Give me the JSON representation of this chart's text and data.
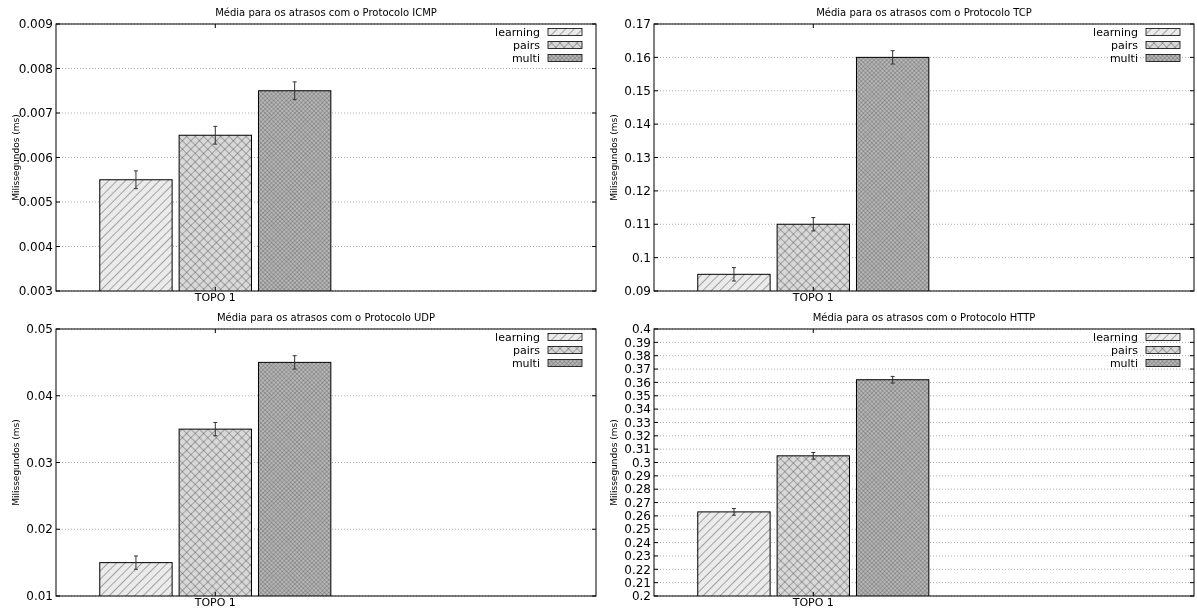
{
  "chart_data": [
    {
      "type": "bar",
      "title": "Média para os atrasos com o Protocolo ICMP",
      "ylabel": "Milissegundos (ms)",
      "categories": [
        "TOPO 1"
      ],
      "series": [
        {
          "name": "learning",
          "color": "#ebebeb",
          "values": [
            0.0055
          ],
          "errors": [
            0.0002
          ]
        },
        {
          "name": "pairs",
          "color": "#d8d8d8",
          "values": [
            0.0065
          ],
          "errors": [
            0.0002
          ]
        },
        {
          "name": "multi",
          "color": "#b8b8b8",
          "values": [
            0.0075
          ],
          "errors": [
            0.0002
          ]
        }
      ],
      "ylim": [
        0.003,
        0.009
      ],
      "yticks": [
        0.003,
        0.004,
        0.005,
        0.006,
        0.007,
        0.008,
        0.009
      ],
      "grid": "y",
      "legend": "top right"
    },
    {
      "type": "bar",
      "title": "Média para os atrasos com o Protocolo TCP",
      "ylabel": "Milissegundos (ms)",
      "categories": [
        "TOPO 1"
      ],
      "series": [
        {
          "name": "learning",
          "color": "#ebebeb",
          "values": [
            0.095
          ],
          "errors": [
            0.002
          ]
        },
        {
          "name": "pairs",
          "color": "#d8d8d8",
          "values": [
            0.11
          ],
          "errors": [
            0.002
          ]
        },
        {
          "name": "multi",
          "color": "#b8b8b8",
          "values": [
            0.16
          ],
          "errors": [
            0.002
          ]
        }
      ],
      "ylim": [
        0.09,
        0.17
      ],
      "yticks": [
        0.09,
        0.1,
        0.11,
        0.12,
        0.13,
        0.14,
        0.15,
        0.16,
        0.17
      ],
      "grid": "y",
      "legend": "top right"
    },
    {
      "type": "bar",
      "title": "Média para os atrasos com o Protocolo UDP",
      "ylabel": "Milissegundos (ms)",
      "categories": [
        "TOPO 1"
      ],
      "series": [
        {
          "name": "learning",
          "color": "#ebebeb",
          "values": [
            0.015
          ],
          "errors": [
            0.001
          ]
        },
        {
          "name": "pairs",
          "color": "#d8d8d8",
          "values": [
            0.035
          ],
          "errors": [
            0.001
          ]
        },
        {
          "name": "multi",
          "color": "#b8b8b8",
          "values": [
            0.045
          ],
          "errors": [
            0.001
          ]
        }
      ],
      "ylim": [
        0.01,
        0.05
      ],
      "yticks": [
        0.01,
        0.02,
        0.03,
        0.04,
        0.05
      ],
      "grid": "y",
      "legend": "top right"
    },
    {
      "type": "bar",
      "title": "Média para os atrasos com o Protocolo HTTP",
      "ylabel": "Milissegundos (ms)",
      "categories": [
        "TOPO 1"
      ],
      "series": [
        {
          "name": "learning",
          "color": "#ebebeb",
          "values": [
            0.263
          ],
          "errors": [
            0.0025
          ]
        },
        {
          "name": "pairs",
          "color": "#d8d8d8",
          "values": [
            0.305
          ],
          "errors": [
            0.0025
          ]
        },
        {
          "name": "multi",
          "color": "#b8b8b8",
          "values": [
            0.362
          ],
          "errors": [
            0.0025
          ]
        }
      ],
      "ylim": [
        0.2,
        0.4
      ],
      "yticks": [
        0.2,
        0.21,
        0.22,
        0.23,
        0.24,
        0.25,
        0.26,
        0.27,
        0.28,
        0.29,
        0.3,
        0.31,
        0.32,
        0.33,
        0.34,
        0.35,
        0.36,
        0.37,
        0.38,
        0.39,
        0.4
      ],
      "grid": "y",
      "legend": "top right"
    }
  ]
}
